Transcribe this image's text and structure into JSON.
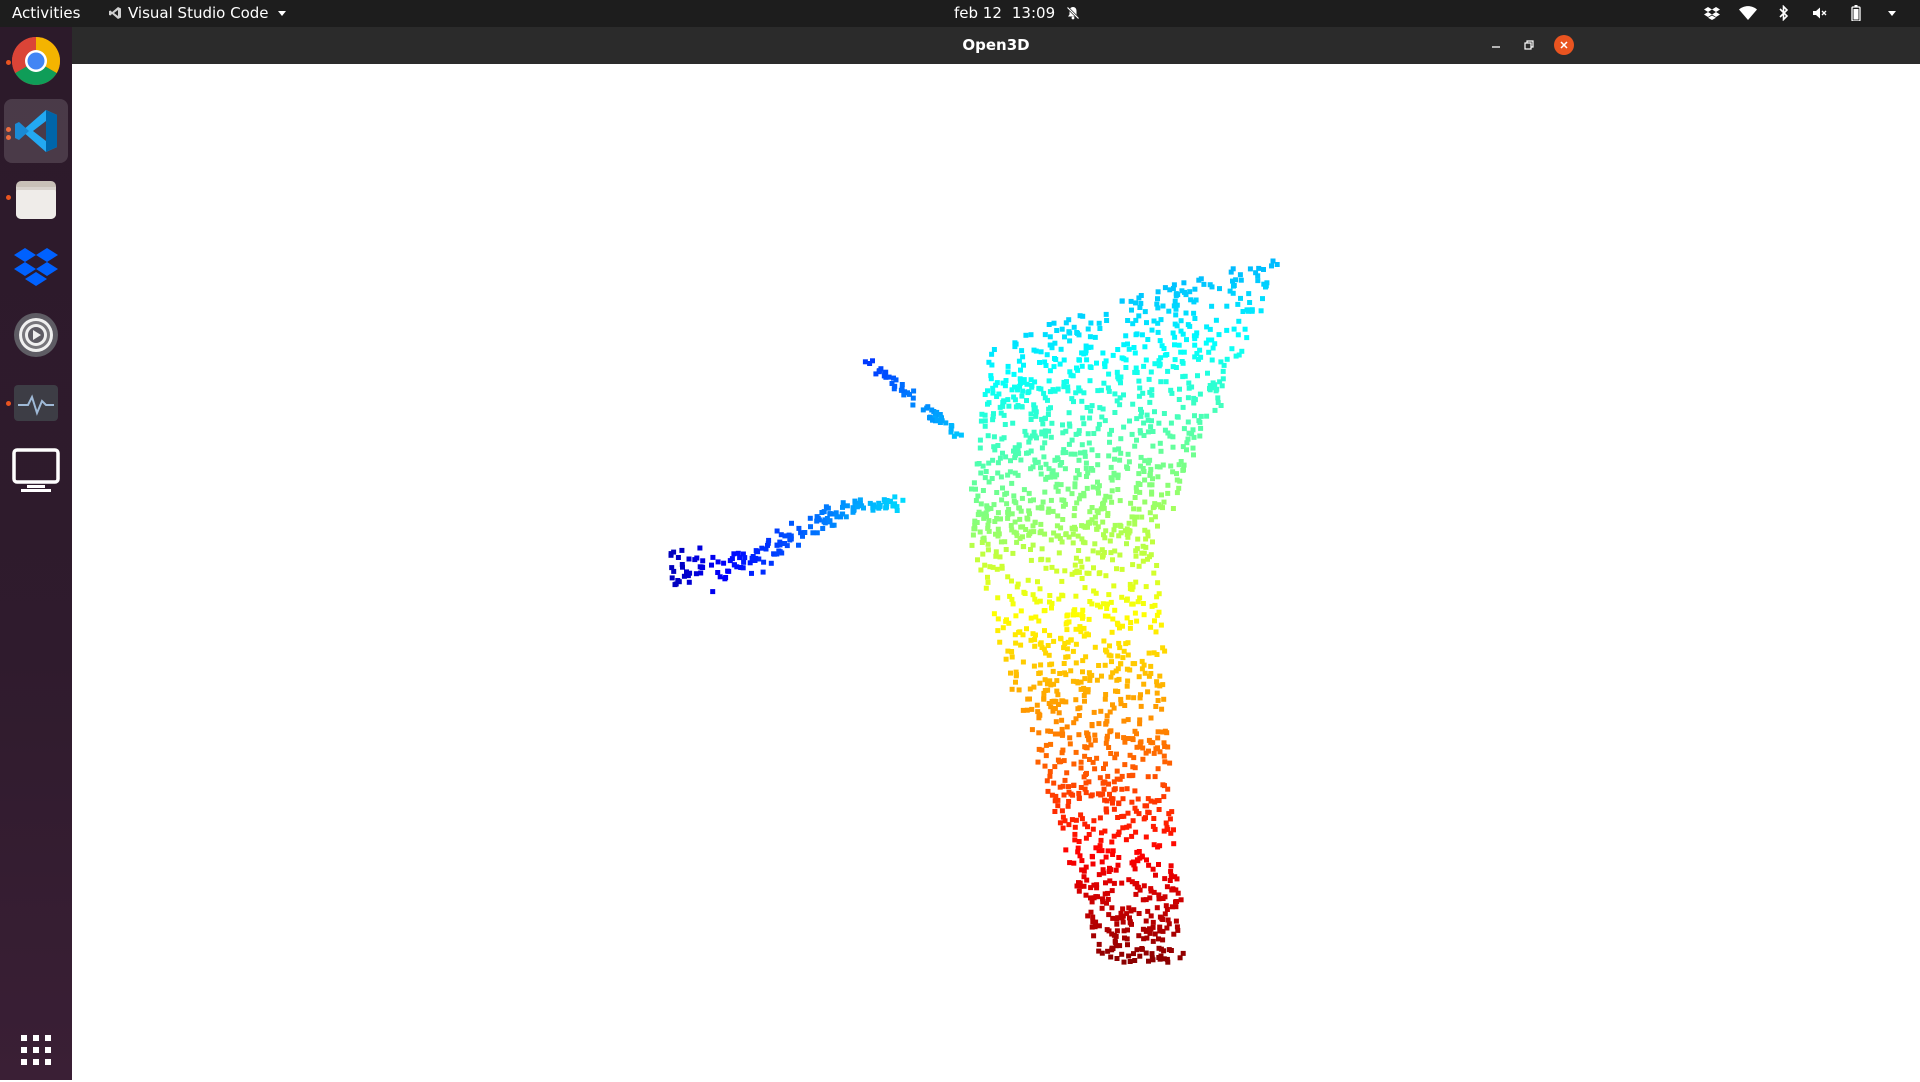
{
  "topbar": {
    "activities": "Activities",
    "app_name": "Visual Studio Code",
    "date": "feb 12",
    "time": "13:09",
    "icons": [
      "notifications-muted-icon",
      "dropbox-tray-icon",
      "wifi-icon",
      "bluetooth-icon",
      "volume-muted-icon",
      "battery-icon",
      "system-menu-chevron-icon"
    ]
  },
  "dock": {
    "items": [
      {
        "name": "chrome",
        "icon": "chrome-icon",
        "running": true,
        "active": false
      },
      {
        "name": "vscode",
        "icon": "vscode-icon",
        "running": true,
        "active": true
      },
      {
        "name": "files",
        "icon": "files-icon",
        "running": true,
        "active": false
      },
      {
        "name": "dropbox",
        "icon": "dropbox-icon",
        "running": false,
        "active": false
      },
      {
        "name": "settings",
        "icon": "settings-icon",
        "running": false,
        "active": false
      },
      {
        "name": "system-monitor",
        "icon": "system-monitor-icon",
        "running": true,
        "active": false
      },
      {
        "name": "display",
        "icon": "display-icon",
        "running": false,
        "active": false
      }
    ],
    "apps_grid_icon": "apps-grid-icon"
  },
  "window": {
    "title": "Open3D",
    "controls": [
      "minimize-icon",
      "restore-icon",
      "close-icon"
    ],
    "close_color": "#e95420"
  },
  "viewport": {
    "content": "3D point cloud colored by height (jet colormap, blue to red)",
    "background": "#ffffff"
  }
}
